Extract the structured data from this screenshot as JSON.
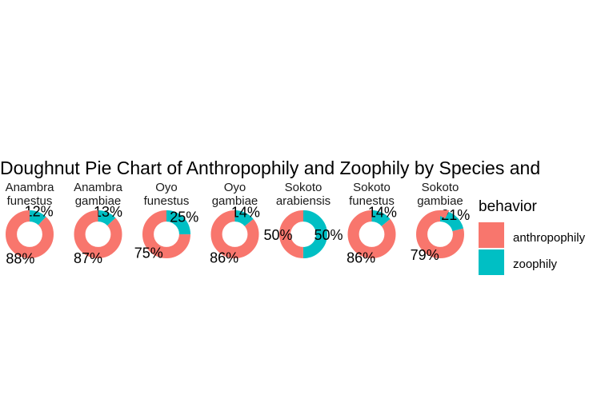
{
  "chart_data": {
    "type": "pie",
    "subtype": "doughnut",
    "title": "Doughnut Pie Chart of Anthropophily and Zoophily by Species and",
    "legend": {
      "title": "behavior",
      "position": "right",
      "entries": [
        {
          "name": "anthropophily",
          "color": "#F8766D"
        },
        {
          "name": "zoophily",
          "color": "#00BFC4"
        }
      ]
    },
    "facets": [
      {
        "label_line1": "Anambra",
        "label_line2": "funestus",
        "slices": [
          {
            "behavior": "anthropophily",
            "value": 88,
            "label": "88%"
          },
          {
            "behavior": "zoophily",
            "value": 12,
            "label": "12%"
          }
        ]
      },
      {
        "label_line1": "Anambra",
        "label_line2": "gambiae",
        "slices": [
          {
            "behavior": "anthropophily",
            "value": 87,
            "label": "87%"
          },
          {
            "behavior": "zoophily",
            "value": 13,
            "label": "13%"
          }
        ]
      },
      {
        "label_line1": "Oyo",
        "label_line2": "funestus",
        "slices": [
          {
            "behavior": "anthropophily",
            "value": 75,
            "label": "75%"
          },
          {
            "behavior": "zoophily",
            "value": 25,
            "label": "25%"
          }
        ]
      },
      {
        "label_line1": "Oyo",
        "label_line2": "gambiae",
        "slices": [
          {
            "behavior": "anthropophily",
            "value": 86,
            "label": "86%"
          },
          {
            "behavior": "zoophily",
            "value": 14,
            "label": "14%"
          }
        ]
      },
      {
        "label_line1": "Sokoto",
        "label_line2": "arabiensis",
        "slices": [
          {
            "behavior": "anthropophily",
            "value": 50,
            "label": "50%"
          },
          {
            "behavior": "zoophily",
            "value": 50,
            "label": "50%"
          }
        ]
      },
      {
        "label_line1": "Sokoto",
        "label_line2": "funestus",
        "slices": [
          {
            "behavior": "anthropophily",
            "value": 86,
            "label": "86%"
          },
          {
            "behavior": "zoophily",
            "value": 14,
            "label": "14%"
          }
        ]
      },
      {
        "label_line1": "Sokoto",
        "label_line2": "gambiae",
        "slices": [
          {
            "behavior": "anthropophily",
            "value": 79,
            "label": "79%"
          },
          {
            "behavior": "zoophily",
            "value": 21,
            "label": "21%"
          }
        ]
      }
    ]
  }
}
